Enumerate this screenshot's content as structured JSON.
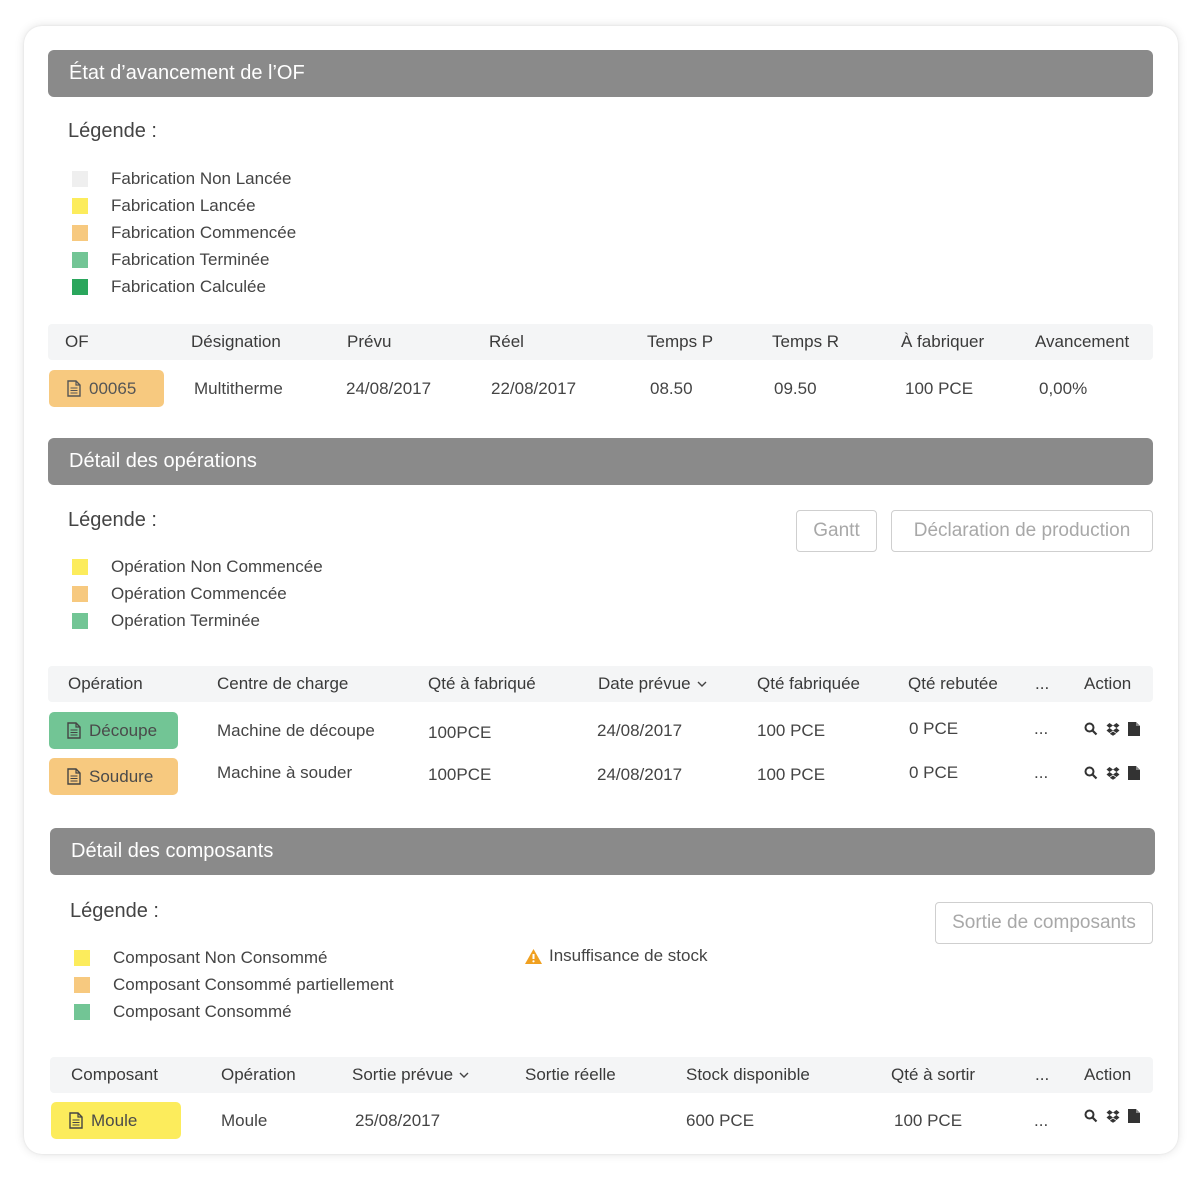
{
  "colors": {
    "header_bg": "#8a8a8a",
    "non_lancee": "#efefef",
    "yellow": "#fcec5c",
    "orange": "#f7c97f",
    "light_green": "#72c595",
    "dark_green": "#2aa65c",
    "warning": "#f0a020"
  },
  "of_section": {
    "title": "État d’avancement de l’OF",
    "legend_title": "Légende :",
    "legend": [
      {
        "label": "Fabrication Non Lancée",
        "color": "#efefef"
      },
      {
        "label": "Fabrication Lancée",
        "color": "#fcec5c"
      },
      {
        "label": "Fabrication Commencée",
        "color": "#f7c97f"
      },
      {
        "label": "Fabrication Terminée",
        "color": "#72c595"
      },
      {
        "label": "Fabrication Calculée",
        "color": "#2aa65c"
      }
    ],
    "columns": [
      "OF",
      "Désignation",
      "Prévu",
      "Réel",
      "Temps P",
      "Temps R",
      "À fabriquer",
      "Avancement"
    ],
    "row": {
      "of": "00065",
      "of_icon": "document-icon",
      "designation": "Multitherme",
      "prevu": "24/08/2017",
      "reel": "22/08/2017",
      "temps_p": "08.50",
      "temps_r": "09.50",
      "a_fabriquer": "100 PCE",
      "avancement": "0,00%"
    }
  },
  "operations_section": {
    "title": "Détail des opérations",
    "legend_title": "Légende :",
    "buttons": {
      "gantt": "Gantt",
      "declaration": "Déclaration de production"
    },
    "legend": [
      {
        "label": "Opération Non Commencée",
        "color": "#fcec5c"
      },
      {
        "label": "Opération Commencée",
        "color": "#f7c97f"
      },
      {
        "label": "Opération Terminée",
        "color": "#72c595"
      }
    ],
    "columns": {
      "operation": "Opération",
      "centre": "Centre de charge",
      "qte_a_fabriquer": "Qté à fabriqué",
      "date_prevue": "Date prévue",
      "qte_fabriquee": "Qté fabriquée",
      "qte_rebutee": "Qté rebutée",
      "more": "...",
      "action": "Action"
    },
    "rows": [
      {
        "operation": "Découpe",
        "color": "#72c595",
        "centre": "Machine de découpe",
        "qte_a_fabriquer": "100PCE",
        "date_prevue": "24/08/2017",
        "qte_fabriquee": "100 PCE",
        "qte_rebutee": "0 PCE",
        "more": "..."
      },
      {
        "operation": "Soudure",
        "color": "#f7c97f",
        "centre": "Machine à souder",
        "qte_a_fabriquer": "100PCE",
        "date_prevue": "24/08/2017",
        "qte_fabriquee": "100 PCE",
        "qte_rebutee": "0 PCE",
        "more": "..."
      }
    ],
    "action_icons": [
      "search-icon",
      "dropbox-icon",
      "file-icon"
    ]
  },
  "components_section": {
    "title": "Détail des composants",
    "legend_title": "Légende :",
    "buttons": {
      "sortie": "Sortie de composants"
    },
    "legend": [
      {
        "label": "Composant Non Consommé",
        "color": "#fcec5c"
      },
      {
        "label": "Composant Consommé partiellement",
        "color": "#f7c97f"
      },
      {
        "label": "Composant Consommé",
        "color": "#72c595"
      }
    ],
    "warning_label": "Insuffisance de stock",
    "columns": {
      "composant": "Composant",
      "operation": "Opération",
      "sortie_prevue": "Sortie prévue",
      "sortie_reelle": "Sortie réelle",
      "stock": "Stock disponible",
      "qte_a_sortir": "Qté à sortir",
      "more": "...",
      "action": "Action"
    },
    "rows": [
      {
        "composant": "Moule",
        "color": "#fcec5c",
        "operation": "Moule",
        "sortie_prevue": "25/08/2017",
        "sortie_reelle": "",
        "stock": "600 PCE",
        "qte_a_sortir": "100 PCE",
        "more": "..."
      }
    ],
    "action_icons": [
      "search-icon",
      "dropbox-icon",
      "file-icon"
    ]
  }
}
